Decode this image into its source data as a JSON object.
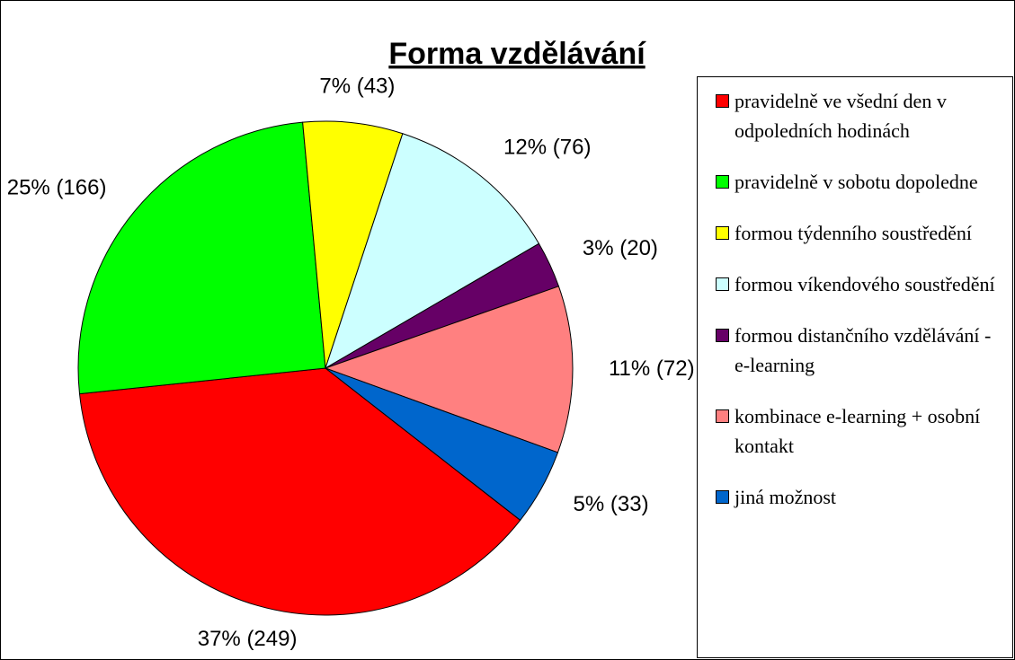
{
  "chart_data": {
    "type": "pie",
    "title": "Forma vzdělávání",
    "categories": [
      "pravidelně ve všední den v odpoledních hodinách",
      "pravidelně v sobotu dopoledne",
      "formou týdenního soustředění",
      "formou víkendového soustředění",
      "formou distančního vzdělávání - e-learning",
      "kombinace e-learning + osobní kontakt",
      "jiná možnost"
    ],
    "values": [
      249,
      166,
      43,
      76,
      20,
      72,
      33
    ],
    "value_labels": [
      "37% (249)",
      "25% (166)",
      "7% (43)",
      "12% (76)",
      "3% (20)",
      "11% (72)",
      "5% (33)"
    ],
    "colors": [
      "#ff0000",
      "#00ff00",
      "#ffff00",
      "#ccffff",
      "#660066",
      "#ff8080",
      "#0066cc"
    ],
    "legend": "right"
  }
}
